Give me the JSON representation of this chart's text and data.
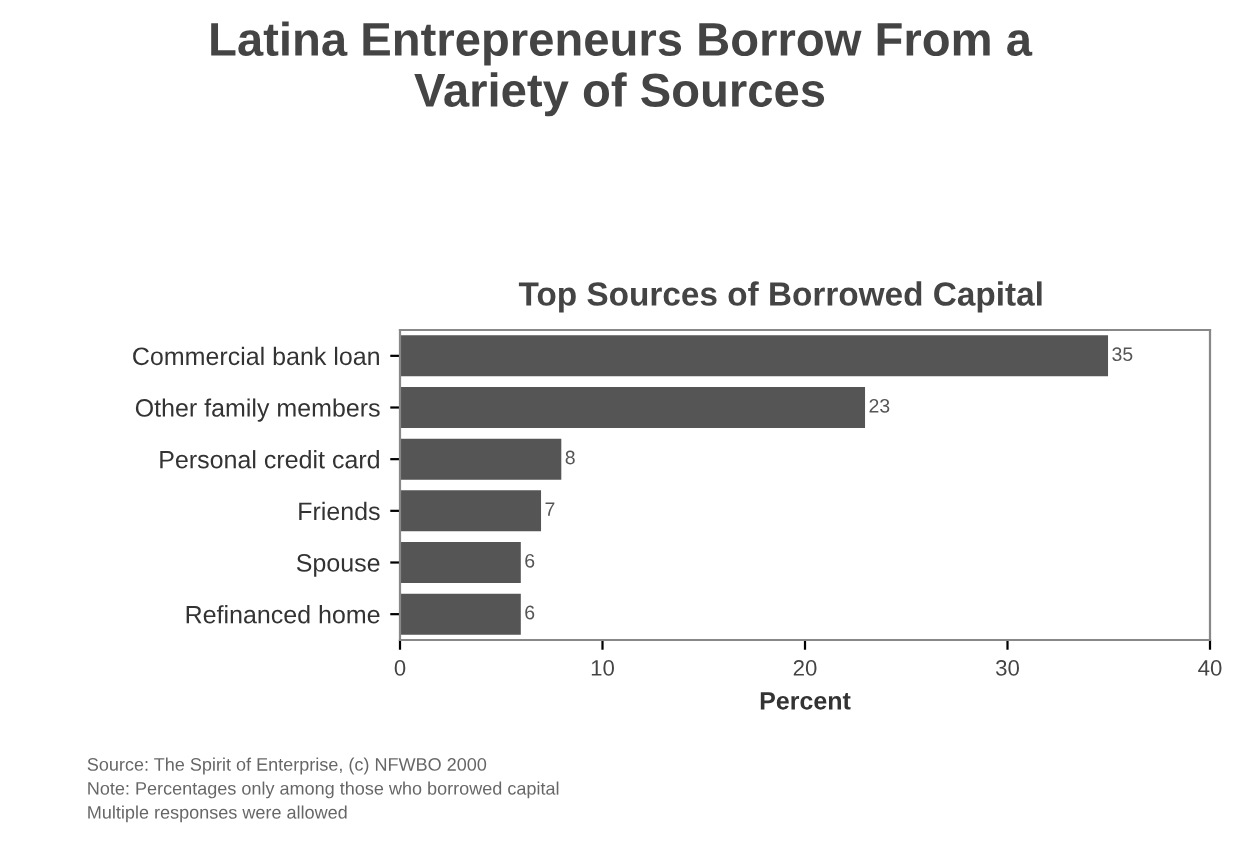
{
  "chart_data": {
    "type": "bar",
    "orientation": "horizontal",
    "title": "Latina Entrepreneurs Borrow From a\nVariety of Sources",
    "subtitle": "Top Sources of Borrowed Capital",
    "xlabel": "Percent",
    "categories": [
      "Commercial bank loan",
      "Other family members",
      "Personal credit card",
      "Friends",
      "Spouse",
      "Refinanced home"
    ],
    "values": [
      35,
      23,
      8,
      7,
      6,
      6
    ],
    "color": "#555555",
    "data_labels": true,
    "xlim": [
      0,
      40
    ],
    "xticks": [
      0,
      10,
      20,
      30,
      40
    ],
    "grid": false,
    "annotations": [
      "Source: The Spirit of Enterprise, (c) NFWBO 2000",
      "Note: Percentages only among those who borrowed capital",
      "Multiple responses were allowed"
    ]
  }
}
